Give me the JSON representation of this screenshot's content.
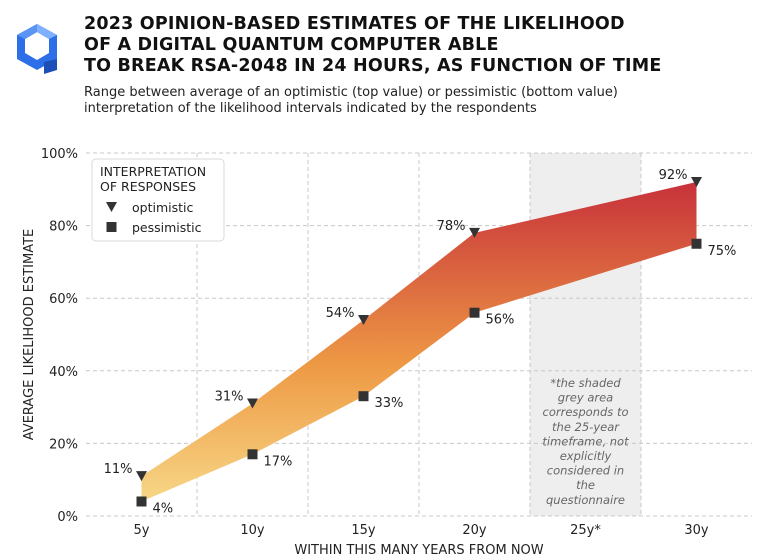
{
  "title_lines": [
    "2023 OPINION-BASED ESTIMATES OF THE LIKELIHOOD",
    "OF A DIGITAL QUANTUM COMPUTER ABLE",
    "TO BREAK RSA-2048 IN 24 HOURS, AS FUNCTION OF TIME"
  ],
  "subtitle_lines": [
    "Range between average of an optimistic (top value) or pessimistic (bottom value)",
    "interpretation of the likelihood intervals indicated by the respondents"
  ],
  "logo": {
    "icon": "cube-logo-icon",
    "color": "#2d6fe8"
  },
  "colors": {
    "low": "#f8df8f",
    "mid": "#ee9a45",
    "high": "#c7303a",
    "marker": "#333333",
    "shade": "#eeeeee"
  },
  "chart_data": {
    "type": "area",
    "title": "2023 OPINION-BASED ESTIMATES OF THE LIKELIHOOD OF A DIGITAL QUANTUM COMPUTER ABLE TO BREAK RSA-2048 IN 24 HOURS, AS FUNCTION OF TIME",
    "xlabel": "WITHIN THIS MANY YEARS FROM NOW",
    "ylabel": "AVERAGE LIKELIHOOD ESTIMATE",
    "categories": [
      "5y",
      "10y",
      "15y",
      "20y",
      "25y*",
      "30y"
    ],
    "ylim": [
      0,
      100
    ],
    "yticks": [
      "0%",
      "20%",
      "40%",
      "60%",
      "80%",
      "100%"
    ],
    "grid": true,
    "series": [
      {
        "name": "optimistic",
        "marker": "triangle-down",
        "points": [
          [
            0,
            11
          ],
          [
            1,
            31
          ],
          [
            2,
            54
          ],
          [
            3,
            78
          ],
          [
            5,
            92
          ]
        ],
        "labels": [
          "11%",
          "31%",
          "54%",
          "78%",
          "92%"
        ]
      },
      {
        "name": "pessimistic",
        "marker": "square",
        "points": [
          [
            0,
            4
          ],
          [
            1,
            17
          ],
          [
            2,
            33
          ],
          [
            3,
            56
          ],
          [
            5,
            75
          ]
        ],
        "labels": [
          "4%",
          "17%",
          "33%",
          "56%",
          "75%"
        ]
      }
    ],
    "legend": {
      "title_lines": [
        "INTERPRETATION",
        "OF RESPONSES"
      ],
      "position": "top-left"
    },
    "shaded_category": "25y*",
    "annotation_lines": [
      "*the shaded",
      "grey area",
      "corresponds to",
      "the 25-year",
      "timeframe, not",
      "explicitly",
      "considered in",
      "the",
      "questionnaire"
    ]
  }
}
